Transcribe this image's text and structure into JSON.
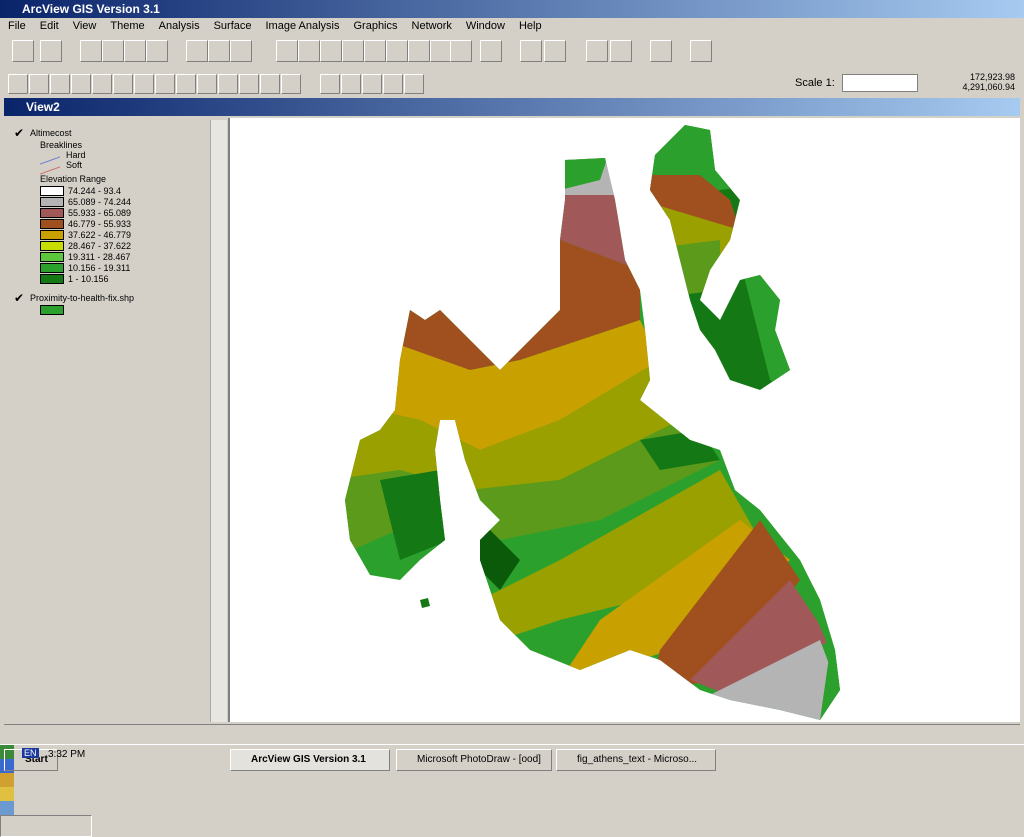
{
  "app_title": "ArcView GIS Version 3.1",
  "menu": [
    "File",
    "Edit",
    "View",
    "Theme",
    "Analysis",
    "Surface",
    "Image Analysis",
    "Graphics",
    "Network",
    "Window",
    "Help"
  ],
  "scale_label": "Scale 1:",
  "coordinates": [
    "172,923.98",
    "4,291,060.94"
  ],
  "view_title": "View2",
  "legend": {
    "theme": "Altimecost",
    "breaklines_label": "Breaklines",
    "breaklines": [
      "Hard",
      "Soft"
    ],
    "range_label": "Elevation Range",
    "ranges": [
      {
        "label": "74.244 - 93.4",
        "color": "#ffffff"
      },
      {
        "label": "65.089 - 74.244",
        "color": "#b4b4b4"
      },
      {
        "label": "55.933 - 65.089",
        "color": "#a05858"
      },
      {
        "label": "46.779 - 55.933",
        "color": "#a0501e"
      },
      {
        "label": "37.622 - 46.779",
        "color": "#c8a000"
      },
      {
        "label": "28.467 - 37.622",
        "color": "#c8dc00"
      },
      {
        "label": "19.311 - 28.467",
        "color": "#5cc83c"
      },
      {
        "label": "10.156 - 19.311",
        "color": "#2ca02c"
      },
      {
        "label": "1 - 10.156",
        "color": "#147814"
      }
    ],
    "theme2": "Proximity-to-health-fix.shp"
  },
  "taskbar": {
    "start": "Start",
    "tasks": [
      "ArcView GIS Version 3.1",
      "Microsoft PhotoDraw - [ood]",
      "fig_athens_text - Microso..."
    ],
    "lang": "EN",
    "clock": "3:32 PM"
  }
}
